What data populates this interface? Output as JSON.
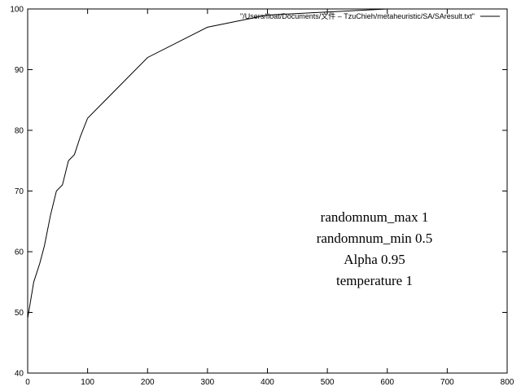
{
  "chart_data": {
    "type": "line",
    "title": "",
    "xlabel": "",
    "ylabel": "",
    "xlim": [
      0,
      800
    ],
    "ylim": [
      40,
      100
    ],
    "xticks": [
      0,
      100,
      200,
      300,
      400,
      500,
      600,
      700,
      800
    ],
    "yticks": [
      40,
      50,
      60,
      70,
      80,
      90,
      100
    ],
    "grid": false,
    "legend_position": "top-right",
    "series": [
      {
        "name": "\"/Users/float/Documents/文件 – TzuChieh/metaheuristic/SA/SAresult.txt\"",
        "color": "#000000",
        "x": [
          0,
          5,
          10,
          20,
          28,
          38,
          48,
          58,
          68,
          78,
          88,
          100,
          200,
          300,
          400,
          500,
          600,
          700,
          800
        ],
        "y": [
          49,
          52,
          55,
          58,
          61,
          66,
          70,
          71,
          75,
          76,
          79,
          82,
          92,
          97,
          99,
          99.5,
          100,
          100,
          100
        ]
      }
    ],
    "annotations": [
      "randomnum_max 1",
      "randomnum_min 0.5",
      "Alpha 0.95",
      "temperature 1"
    ]
  }
}
